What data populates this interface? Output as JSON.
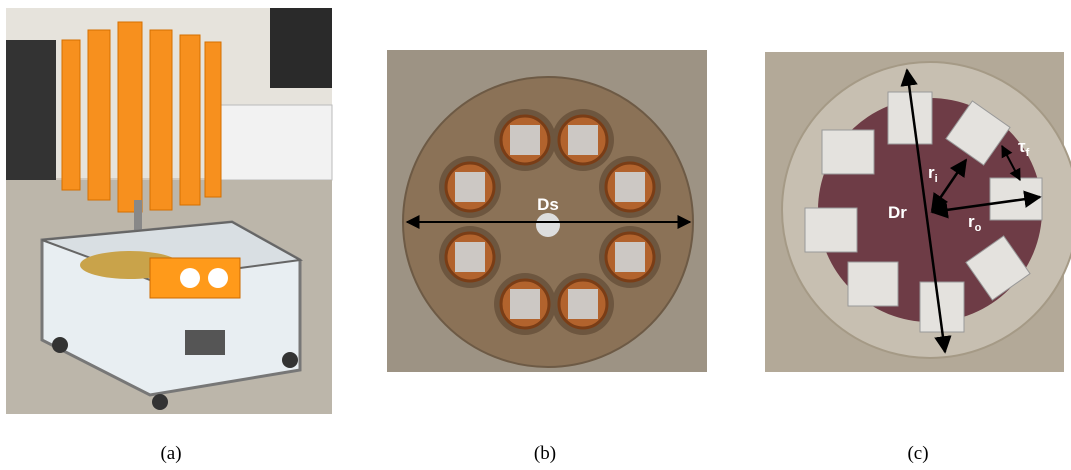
{
  "captions": [
    "(a)",
    "(b)",
    "(c)"
  ],
  "panel_b": {
    "labels": [
      "Ds"
    ]
  },
  "panel_c": {
    "labels": [
      {
        "text": "Dr"
      },
      {
        "text": "r",
        "sub": "i"
      },
      {
        "text": "r",
        "sub": "o"
      },
      {
        "text": "τ",
        "sub": "f"
      }
    ]
  }
}
